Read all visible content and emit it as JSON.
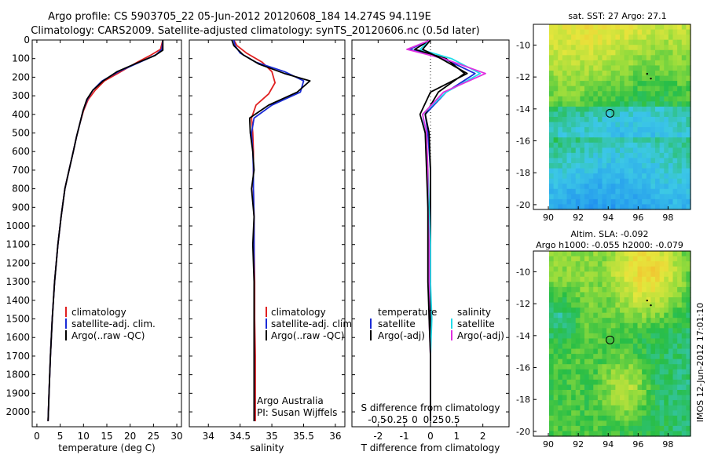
{
  "header": {
    "line1": "Argo profile: CS 5903705_22 05-Jun-2012 20120608_184 14.274S 94.119E",
    "line2": "Climatology: CARS2009. Satellite-adjusted climatology: synTS_20120606.nc (0.5d later)"
  },
  "colors": {
    "climatology": "#e02020",
    "satellite": "#1a2bd6",
    "argo": "#000000",
    "sal_satellite": "#22dcea",
    "sal_argo": "#e030e0"
  },
  "footer_text": "IMOS 12-Jun-2012 17:01:10",
  "chart_data": [
    {
      "type": "line",
      "id": "temperature",
      "xlabel": "temperature (deg C)",
      "xlim": [
        -1,
        31
      ],
      "ylim": [
        2080,
        0
      ],
      "xticks": [
        0,
        5,
        10,
        15,
        20,
        25,
        30
      ],
      "yticks": [
        0,
        100,
        200,
        300,
        400,
        500,
        600,
        700,
        800,
        900,
        1000,
        1100,
        1200,
        1300,
        1400,
        1500,
        1600,
        1700,
        1800,
        1900,
        2000
      ],
      "legend": [
        "climatology",
        "satellite-adj. clim.",
        "Argo(..raw -QC)"
      ],
      "series": [
        {
          "name": "climatology",
          "x": [
            27.0,
            26.5,
            24.5,
            21.5,
            18.0,
            14.5,
            12.5,
            11.0,
            10.0,
            9.2,
            8.5,
            7.8,
            6.9,
            6.0,
            5.2,
            4.5,
            3.8,
            3.3,
            2.9,
            2.6,
            2.4
          ],
          "y": [
            0,
            50,
            80,
            120,
            170,
            220,
            270,
            320,
            380,
            450,
            520,
            600,
            700,
            800,
            950,
            1100,
            1300,
            1500,
            1700,
            1900,
            2050
          ]
        },
        {
          "name": "satellite-adj. clim.",
          "x": [
            27.0,
            26.8,
            25.5,
            22.0,
            17.5,
            14.0,
            12.0,
            10.8,
            9.9,
            9.2,
            8.5,
            7.8,
            6.9,
            6.0,
            5.2,
            4.5,
            3.8,
            3.3,
            2.9,
            2.6,
            2.4
          ],
          "y": [
            0,
            50,
            80,
            120,
            170,
            220,
            270,
            320,
            380,
            450,
            520,
            600,
            700,
            800,
            950,
            1100,
            1300,
            1500,
            1700,
            1900,
            2050
          ]
        },
        {
          "name": "Argo(..raw -QC)",
          "x": [
            27.0,
            27.0,
            25.2,
            21.8,
            17.2,
            14.2,
            12.0,
            10.7,
            9.9,
            9.2,
            8.5,
            7.8,
            6.9,
            6.0,
            5.2,
            4.5,
            3.8,
            3.3,
            2.9,
            2.6,
            2.4
          ],
          "y": [
            0,
            55,
            85,
            120,
            170,
            220,
            270,
            320,
            380,
            450,
            520,
            600,
            700,
            800,
            950,
            1100,
            1300,
            1500,
            1700,
            1900,
            2050
          ]
        }
      ]
    },
    {
      "type": "line",
      "id": "salinity",
      "xlabel": "salinity",
      "xlim": [
        33.7,
        36.15
      ],
      "ylim": [
        2080,
        0
      ],
      "xticks": [
        34,
        34.5,
        35,
        35.5,
        36
      ],
      "legend": [
        "climatology",
        "satellite-adj. clim.",
        "Argo(..raw -QC)"
      ],
      "annotation": [
        "Argo Australia",
        "PI: Susan Wijffels"
      ],
      "series": [
        {
          "name": "climatology",
          "x": [
            34.4,
            34.45,
            34.6,
            34.85,
            35.0,
            35.05,
            34.95,
            34.75,
            34.68,
            34.7,
            34.71,
            34.71,
            34.71,
            34.72,
            34.72,
            34.73,
            34.73,
            34.74,
            34.74,
            34.74
          ],
          "y": [
            0,
            30,
            70,
            120,
            170,
            230,
            290,
            350,
            420,
            500,
            600,
            700,
            800,
            950,
            1100,
            1300,
            1500,
            1700,
            1900,
            2050
          ]
        },
        {
          "name": "satellite-adj. clim.",
          "x": [
            34.4,
            34.42,
            34.5,
            34.75,
            35.2,
            35.5,
            35.45,
            35.0,
            34.72,
            34.68,
            34.7,
            34.71,
            34.71,
            34.72,
            34.72,
            34.72,
            34.72,
            34.72,
            34.72,
            34.72
          ],
          "y": [
            0,
            30,
            70,
            120,
            170,
            220,
            280,
            350,
            420,
            500,
            600,
            700,
            800,
            950,
            1100,
            1300,
            1500,
            1700,
            1900,
            2050
          ]
        },
        {
          "name": "Argo(..raw -QC)",
          "x": [
            34.37,
            34.4,
            34.55,
            34.8,
            35.2,
            35.6,
            35.4,
            34.95,
            34.65,
            34.66,
            34.7,
            34.72,
            34.68,
            34.72,
            34.7,
            34.72,
            34.72,
            34.72,
            34.72,
            34.72
          ],
          "y": [
            0,
            30,
            80,
            130,
            180,
            220,
            280,
            350,
            420,
            500,
            600,
            700,
            800,
            950,
            1100,
            1300,
            1500,
            1700,
            1900,
            2050
          ]
        }
      ]
    },
    {
      "type": "line",
      "id": "difference",
      "xlabel": "T difference from climatology",
      "xlabel_top": "S difference from climatology",
      "xlim": [
        -3,
        3
      ],
      "ylim": [
        2080,
        0
      ],
      "xticks": [
        -2,
        -1,
        0,
        1,
        2
      ],
      "xtick_labels": [
        "-2",
        "-1",
        "0",
        "1",
        "2"
      ],
      "xticks_s": [
        -2,
        -1,
        0,
        1,
        2
      ],
      "xtick_labels_s": [
        "-0.5",
        "-0.25",
        "0",
        "0.25",
        "0.5"
      ],
      "legend_temperature": [
        "temperature",
        "satellite",
        "Argo(-adj)"
      ],
      "legend_salinity": [
        "salinity",
        "satellite",
        "Argo(-adj)"
      ],
      "series": [
        {
          "name": "T satellite",
          "x": [
            0.0,
            -0.8,
            0.5,
            1.7,
            0.6,
            -0.2,
            -0.1,
            0.0,
            0.0,
            0.0,
            0.0,
            0.0,
            0.0,
            0.0,
            0.0
          ],
          "y": [
            0,
            50,
            100,
            180,
            280,
            400,
            500,
            700,
            900,
            1100,
            1300,
            1500,
            1700,
            1900,
            2050
          ]
        },
        {
          "name": "T Argo(-adj)",
          "x": [
            0.0,
            -0.6,
            0.6,
            1.3,
            0.3,
            -0.2,
            -0.05,
            0.0,
            0.0,
            0.0,
            0.0,
            0.0,
            0.0,
            0.0,
            0.0
          ],
          "y": [
            0,
            50,
            100,
            180,
            280,
            400,
            500,
            700,
            900,
            1100,
            1300,
            1500,
            1700,
            1900,
            2050
          ]
        },
        {
          "name": "S satellite",
          "x": [
            0.0,
            -0.4,
            0.8,
            1.9,
            0.6,
            -0.3,
            -0.2,
            -0.1,
            -0.05,
            0.0,
            0.0,
            0.05,
            0.0,
            0.0,
            0.0
          ],
          "y": [
            0,
            50,
            100,
            180,
            280,
            400,
            500,
            700,
            900,
            1100,
            1300,
            1500,
            1700,
            1900,
            2050
          ]
        },
        {
          "name": "S Argo(-adj)",
          "x": [
            0.0,
            -0.9,
            0.5,
            2.1,
            0.5,
            -0.3,
            -0.15,
            -0.1,
            -0.1,
            -0.05,
            -0.05,
            -0.05,
            0.0,
            0.0,
            0.0
          ],
          "y": [
            0,
            50,
            100,
            180,
            280,
            400,
            500,
            700,
            900,
            1100,
            1300,
            1500,
            1700,
            1900,
            2050
          ]
        },
        {
          "name": "Argo raw",
          "x": [
            0.0,
            -0.3,
            0.4,
            1.4,
            0.0,
            -0.4,
            -0.2,
            -0.15,
            -0.1,
            -0.1,
            -0.1,
            -0.05,
            0.0,
            0.0,
            0.0
          ],
          "y": [
            0,
            50,
            100,
            180,
            280,
            400,
            500,
            700,
            900,
            1100,
            1300,
            1500,
            1700,
            1900,
            2050
          ]
        }
      ]
    },
    {
      "type": "heatmap",
      "id": "sst-map",
      "title": "sat. SST: 27  Argo: 27.1",
      "xlim": [
        89,
        99.5
      ],
      "ylim": [
        -20.3,
        -8.7
      ],
      "xticks": [
        90,
        92,
        94,
        96,
        98
      ],
      "yticks": [
        -10,
        -12,
        -14,
        -16,
        -18,
        -20
      ],
      "float_position": [
        94.12,
        -14.27
      ],
      "track": [
        [
          96.6,
          -11.8
        ],
        [
          96.85,
          -12.1
        ]
      ]
    },
    {
      "type": "heatmap",
      "id": "sla-map",
      "title_lines": [
        "Altim. SLA: -0.092",
        "Argo h1000: -0.055 h2000: -0.079"
      ],
      "xlim": [
        89,
        99.5
      ],
      "ylim": [
        -20.3,
        -8.7
      ],
      "xticks": [
        90,
        92,
        94,
        96,
        98
      ],
      "yticks": [
        -10,
        -12,
        -14,
        -16,
        -18,
        -20
      ],
      "float_position": [
        94.12,
        -14.27
      ],
      "track": [
        [
          96.6,
          -11.8
        ],
        [
          96.85,
          -12.1
        ]
      ]
    }
  ]
}
